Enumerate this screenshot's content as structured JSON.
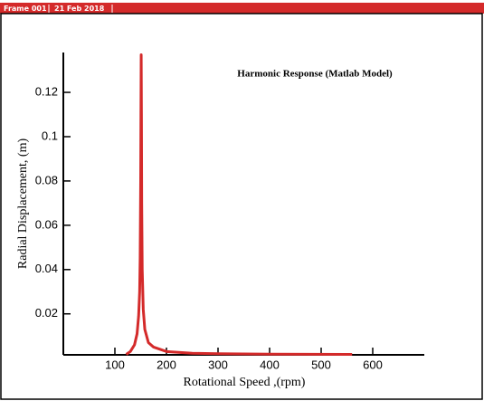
{
  "header": {
    "frame": "Frame 001",
    "date": "21 Feb 2018"
  },
  "chart_data": {
    "type": "line",
    "title": "Harmonic Response (Matlab Model)",
    "xlabel": "Rotational Speed ,(rpm)",
    "ylabel": "Radial Displacement, (m)",
    "x": [
      122,
      130,
      138,
      143,
      146,
      148,
      149,
      150,
      150.5,
      151,
      151.5,
      152,
      153,
      155,
      158,
      165,
      175,
      200,
      250,
      300,
      400,
      560
    ],
    "values": [
      0.0017,
      0.003,
      0.006,
      0.011,
      0.019,
      0.03,
      0.045,
      0.08,
      0.11,
      0.137,
      0.11,
      0.07,
      0.04,
      0.022,
      0.013,
      0.007,
      0.005,
      0.003,
      0.0022,
      0.002,
      0.0018,
      0.0017
    ],
    "color": "#d42a2a",
    "xlim": [
      0,
      700
    ],
    "ylim": [
      0.0015,
      0.138
    ],
    "xticks": [
      100,
      200,
      300,
      400,
      500,
      600
    ],
    "yticks": [
      0.02,
      0.04,
      0.06,
      0.08,
      0.1,
      0.12
    ],
    "grid": false
  }
}
